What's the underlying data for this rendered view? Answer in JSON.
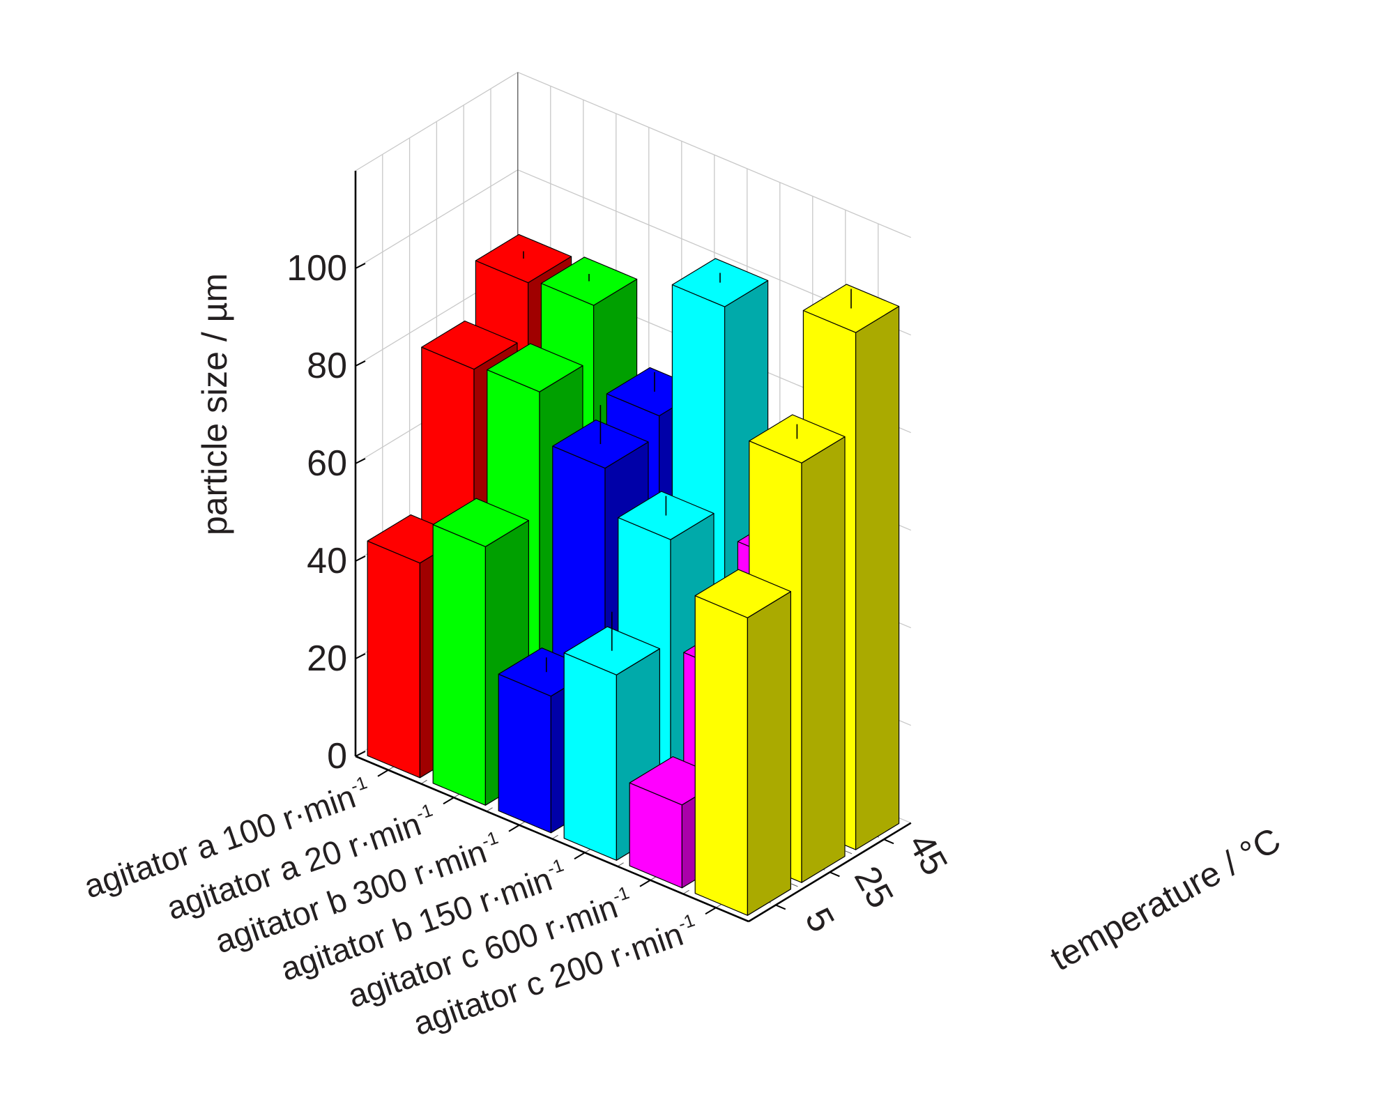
{
  "chart_data": {
    "type": "bar3d",
    "title": "",
    "ylabel": "particle size / µm",
    "xlabel": "",
    "zlabel": "temperature / °C",
    "ylim": [
      0,
      120
    ],
    "yticks": [
      "0",
      "20",
      "40",
      "60",
      "80",
      "100"
    ],
    "categories": [
      "agitator a 100 r·min",
      "agitator a 20 r·min",
      "agitator b 300 r·min",
      "agitator b 150 r·min",
      "agitator c 600 r·min",
      "agitator c 200 r·min"
    ],
    "category_superscripts": [
      "-1",
      "-1",
      "-1",
      "-1",
      "-1",
      "-1"
    ],
    "temperatures": [
      "5",
      "25",
      "45"
    ],
    "grid": true,
    "colors": [
      "#ff0000",
      "#00ff00",
      "#0000ff",
      "#00ffff",
      "#ff00ff",
      "#ffff00"
    ],
    "side_colors": [
      "#a00000",
      "#00a000",
      "#0000a8",
      "#00aaaa",
      "#aa00aa",
      "#aaaa00"
    ],
    "series": [
      {
        "temperature": "5",
        "values": [
          44,
          53,
          28,
          38,
          17,
          61
        ]
      },
      {
        "temperature": "25",
        "values": [
          77,
          78,
          68,
          59,
          37,
          86
        ]
      },
      {
        "temperature": "45",
        "values": [
          88,
          89,
          72,
          100,
          53,
          106
        ]
      }
    ],
    "error_bars": [
      {
        "temperature": "5",
        "values": [
          0,
          0,
          3,
          8,
          0,
          0
        ]
      },
      {
        "temperature": "25",
        "values": [
          0,
          0,
          8,
          4,
          0,
          3
        ]
      },
      {
        "temperature": "45",
        "values": [
          1.5,
          1.5,
          4,
          2,
          0,
          4
        ]
      }
    ]
  }
}
